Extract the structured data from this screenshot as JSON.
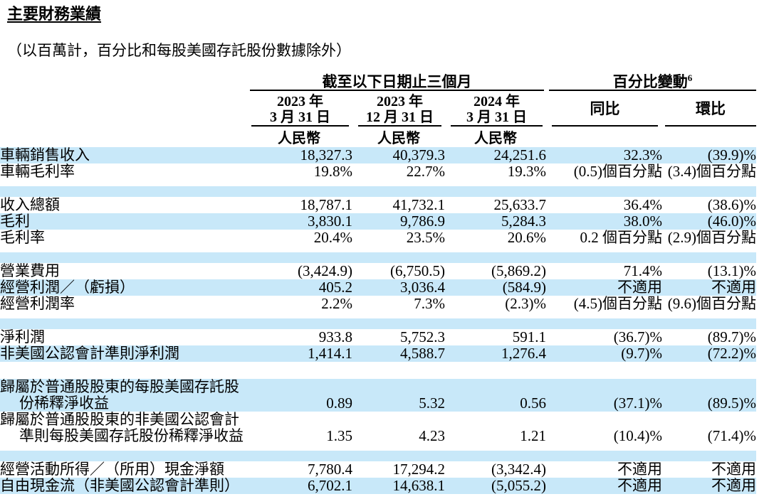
{
  "page": {
    "title": "主要財務業績",
    "subtitle": "（以百萬計，百分比和每股美國存託股份數據除外）"
  },
  "colors": {
    "row_band": "#c8e8f9",
    "text": "#000000",
    "rule": "#000000"
  },
  "table": {
    "group_headers": {
      "period": "截至以下日期止三個月",
      "pct_change": "百分比變動",
      "pct_change_footnote": "6"
    },
    "columns": [
      {
        "line1": "2023 年",
        "line2": "3 月 31 日",
        "currency": "人民幣"
      },
      {
        "line1": "2023 年",
        "line2": "12 月 31 日",
        "currency": "人民幣"
      },
      {
        "line1": "2024 年",
        "line2": "3 月 31 日",
        "currency": "人民幣"
      },
      {
        "label": "同比"
      },
      {
        "label": "環比"
      }
    ],
    "rows": [
      {
        "type": "data",
        "band": true,
        "label": [
          "車輛銷售收入"
        ],
        "cells": [
          "18,327.3",
          "40,379.3",
          "24,251.6",
          "32.3%",
          "(39.9)%"
        ]
      },
      {
        "type": "data",
        "band": false,
        "label": [
          "車輛毛利率"
        ],
        "cells": [
          "19.8%",
          "22.7%",
          "19.3%",
          "(0.5)個百分點",
          "(3.4)個百分點"
        ]
      },
      {
        "type": "spacer",
        "band": true
      },
      {
        "type": "data",
        "band": false,
        "label": [
          "收入總額"
        ],
        "cells": [
          "18,787.1",
          "41,732.1",
          "25,633.7",
          "36.4%",
          "(38.6)%"
        ]
      },
      {
        "type": "data",
        "band": true,
        "label": [
          "毛利"
        ],
        "cells": [
          "3,830.1",
          "9,786.9",
          "5,284.3",
          "38.0%",
          "(46.0)%"
        ]
      },
      {
        "type": "data",
        "band": false,
        "label": [
          "毛利率"
        ],
        "cells": [
          "20.4%",
          "23.5%",
          "20.6%",
          "0.2 個百分點",
          "(2.9)個百分點"
        ]
      },
      {
        "type": "spacer",
        "band": true
      },
      {
        "type": "data",
        "band": false,
        "label": [
          "營業費用"
        ],
        "cells": [
          "(3,424.9)",
          "(6,750.5)",
          "(5,869.2)",
          "71.4%",
          "(13.1)%"
        ]
      },
      {
        "type": "data",
        "band": true,
        "label": [
          "經營利潤／（虧損）"
        ],
        "cells": [
          "405.2",
          "3,036.4",
          "(584.9)",
          "不適用",
          "不適用"
        ]
      },
      {
        "type": "data",
        "band": false,
        "label": [
          "經營利潤率"
        ],
        "cells": [
          "2.2%",
          "7.3%",
          "(2.3)%",
          "(4.5)個百分點",
          "(9.6)個百分點"
        ]
      },
      {
        "type": "spacer",
        "band": true
      },
      {
        "type": "data",
        "band": false,
        "label": [
          "淨利潤"
        ],
        "cells": [
          "933.8",
          "5,752.3",
          "591.1",
          "(36.7)%",
          "(89.7)%"
        ]
      },
      {
        "type": "data",
        "band": true,
        "label": [
          "非美國公認會計準則淨利潤"
        ],
        "cells": [
          "1,414.1",
          "4,588.7",
          "1,276.4",
          "(9.7)%",
          "(72.2)%"
        ]
      },
      {
        "type": "spacer",
        "band": false
      },
      {
        "type": "data",
        "band": true,
        "label": [
          "歸屬於普通股股東的每股美國存託股",
          "份稀釋淨收益"
        ],
        "cells": [
          "0.89",
          "5.32",
          "0.56",
          "(37.1)%",
          "(89.5)%"
        ]
      },
      {
        "type": "data",
        "band": false,
        "label": [
          "歸屬於普通股股東的非美國公認會計",
          "準則每股美國存託股份稀釋淨收益"
        ],
        "cells": [
          "1.35",
          "4.23",
          "1.21",
          "(10.4)%",
          "(71.4)%"
        ]
      },
      {
        "type": "spacer",
        "band": true
      },
      {
        "type": "data",
        "band": false,
        "label": [
          "經營活動所得／（所用）現金淨額"
        ],
        "cells": [
          "7,780.4",
          "17,294.2",
          "(3,342.4)",
          "不適用",
          "不適用"
        ]
      },
      {
        "type": "data",
        "band": true,
        "label": [
          "自由現金流（非美國公認會計準則）"
        ],
        "cells": [
          "6,702.1",
          "14,638.1",
          "(5,055.2)",
          "不適用",
          "不適用"
        ]
      }
    ]
  }
}
